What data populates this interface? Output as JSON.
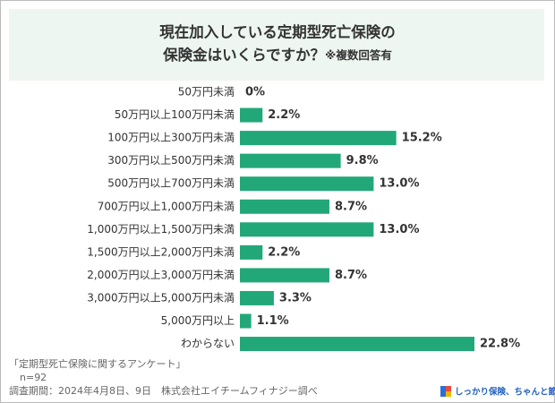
{
  "chart_data": {
    "type": "bar",
    "orientation": "horizontal",
    "title": [
      "現在加入している定期型死亡保険の",
      "保険金はいくらですか？"
    ],
    "title_note": "※複数回答有",
    "categories": [
      "50万円未満",
      "50万円以上100万円未満",
      "100万円以上300万円未満",
      "300万円以上500万円未満",
      "500万円以上700万円未満",
      "700万円以上1,000万円未満",
      "1,000万円以上1,500万円未満",
      "1,500万円以上2,000万円未満",
      "2,000万円以上3,000万円未満",
      "3,000万円以上5,000万円未満",
      "5,000万円以上",
      "わからない"
    ],
    "values": [
      0,
      2.2,
      15.2,
      9.8,
      13.0,
      8.7,
      13.0,
      2.2,
      8.7,
      3.3,
      1.1,
      22.8
    ],
    "value_labels": [
      "0%",
      "2.2%",
      "15.2%",
      "9.8%",
      "13.0%",
      "8.7%",
      "13.0%",
      "2.2%",
      "8.7%",
      "3.3%",
      "1.1%",
      "22.8%"
    ],
    "color": "#22a878",
    "footer": [
      "「定期型死亡保険に関するアンケート」",
      "n=92",
      "調査期間：2024年4月8日、9日　株式会社エイチームフィナジー調べ"
    ],
    "logo": "しっかり保険、ちゃんと節約。"
  }
}
